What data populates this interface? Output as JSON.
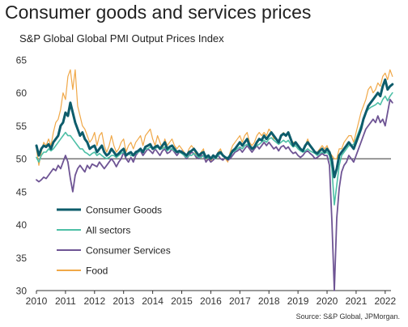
{
  "title": "Consumer goods and services prices",
  "subtitle": "S&P Global Global PMI Output Prices Index",
  "source": "Source: S&P Global, JPMorgan.",
  "chart_data": {
    "type": "line",
    "x_start": 2010.0,
    "x_step_months": 1,
    "xlim": [
      2010,
      2022.2
    ],
    "ylim": [
      30,
      65
    ],
    "yticks": [
      30,
      35,
      40,
      45,
      50,
      55,
      60,
      65
    ],
    "xticks": [
      "2010",
      "2011",
      "2012",
      "2013",
      "2014",
      "2015",
      "2016",
      "2017",
      "2018",
      "2019",
      "2020",
      "2021",
      "2022"
    ],
    "reference_line": 50,
    "grid": false,
    "legend_position": "lower-left",
    "series": [
      {
        "name": "Consumer Goods",
        "color": "#0d5c6b",
        "values": [
          52.0,
          50.5,
          51.5,
          52.0,
          51.8,
          52.2,
          51.5,
          52.5,
          53.0,
          53.5,
          55.0,
          55.5,
          57.0,
          56.5,
          58.5,
          57.0,
          55.5,
          54.5,
          53.5,
          54.0,
          53.0,
          52.5,
          51.5,
          51.8,
          52.0,
          51.0,
          51.5,
          52.0,
          51.0,
          50.5,
          50.8,
          51.5,
          51.0,
          50.5,
          50.8,
          51.2,
          51.5,
          50.5,
          50.8,
          51.0,
          50.5,
          51.0,
          51.2,
          51.5,
          51.0,
          51.8,
          52.0,
          52.2,
          51.5,
          51.8,
          52.0,
          51.5,
          52.0,
          52.5,
          51.5,
          51.8,
          52.0,
          51.5,
          51.0,
          51.2,
          51.0,
          50.8,
          50.5,
          51.0,
          51.2,
          51.5,
          51.0,
          50.5,
          50.8,
          51.0,
          50.2,
          50.5,
          50.0,
          50.5,
          50.2,
          50.8,
          51.0,
          50.5,
          50.2,
          50.0,
          50.5,
          51.2,
          51.5,
          52.0,
          52.5,
          52.0,
          52.5,
          53.0,
          52.0,
          51.5,
          51.8,
          52.5,
          53.0,
          52.8,
          53.5,
          53.0,
          53.5,
          54.0,
          53.5,
          53.0,
          52.5,
          53.5,
          53.8,
          53.5,
          54.0,
          53.0,
          52.0,
          52.5,
          52.0,
          51.5,
          51.2,
          52.0,
          52.5,
          52.0,
          51.5,
          51.0,
          50.8,
          51.2,
          51.5,
          51.0,
          51.5,
          51.0,
          49.8,
          47.2,
          48.5,
          50.5,
          51.0,
          51.5,
          52.0,
          52.5,
          52.0,
          51.5,
          52.5,
          53.5,
          54.5,
          56.0,
          57.0,
          58.0,
          58.5,
          59.0,
          59.5,
          60.0,
          59.5,
          61.0,
          62.0,
          60.5,
          61.0,
          61.3
        ]
      },
      {
        "name": "All sectors",
        "color": "#4dbfa6",
        "values": [
          50.2,
          49.5,
          50.5,
          51.0,
          51.0,
          51.5,
          51.2,
          51.5,
          52.0,
          52.5,
          53.0,
          53.5,
          54.0,
          53.5,
          53.5,
          53.0,
          52.5,
          52.0,
          51.5,
          51.5,
          51.0,
          50.8,
          50.5,
          50.8,
          51.0,
          50.5,
          50.8,
          50.5,
          50.2,
          50.0,
          50.2,
          50.5,
          50.5,
          50.2,
          50.5,
          50.8,
          51.0,
          50.5,
          50.8,
          50.5,
          50.5,
          50.8,
          51.0,
          51.2,
          51.0,
          51.5,
          51.5,
          51.8,
          51.5,
          51.5,
          51.8,
          51.5,
          51.5,
          51.8,
          51.2,
          51.5,
          51.5,
          51.2,
          51.0,
          51.0,
          50.8,
          50.5,
          50.2,
          50.5,
          50.5,
          50.8,
          50.5,
          50.2,
          50.2,
          50.5,
          50.0,
          50.2,
          50.0,
          50.2,
          50.0,
          50.5,
          50.8,
          50.5,
          50.2,
          50.2,
          50.5,
          51.0,
          51.2,
          51.5,
          51.8,
          51.5,
          52.0,
          52.2,
          51.8,
          51.5,
          51.8,
          52.0,
          52.2,
          52.5,
          52.8,
          52.5,
          53.0,
          53.2,
          52.8,
          52.5,
          52.2,
          52.5,
          52.8,
          52.5,
          52.8,
          52.2,
          51.8,
          52.0,
          51.5,
          51.2,
          51.0,
          51.2,
          51.5,
          51.2,
          51.0,
          50.8,
          50.5,
          50.8,
          51.0,
          50.8,
          51.0,
          50.5,
          48.5,
          43.0,
          46.0,
          49.0,
          50.5,
          51.0,
          51.5,
          52.0,
          52.0,
          52.2,
          53.0,
          54.0,
          55.0,
          56.0,
          57.0,
          57.5,
          57.8,
          58.0,
          58.2,
          58.5,
          58.2,
          59.0,
          59.5,
          58.8,
          59.5,
          60.0
        ]
      },
      {
        "name": "Consumer Services",
        "color": "#6e5494",
        "values": [
          46.8,
          46.5,
          46.8,
          47.2,
          47.0,
          47.5,
          48.0,
          48.5,
          48.2,
          49.0,
          48.5,
          49.5,
          50.5,
          49.5,
          47.0,
          45.0,
          47.5,
          48.5,
          49.0,
          48.5,
          48.0,
          49.0,
          48.5,
          49.2,
          49.0,
          48.8,
          49.5,
          49.0,
          48.5,
          49.0,
          49.5,
          50.0,
          49.5,
          48.8,
          49.5,
          50.0,
          51.0,
          50.0,
          49.5,
          50.2,
          49.5,
          50.5,
          51.0,
          51.2,
          50.5,
          51.0,
          51.5,
          51.2,
          50.8,
          51.5,
          51.0,
          50.5,
          51.2,
          51.5,
          50.8,
          51.0,
          51.5,
          51.0,
          50.5,
          51.0,
          51.2,
          50.5,
          50.0,
          50.5,
          51.0,
          50.8,
          50.2,
          50.0,
          50.5,
          50.5,
          49.5,
          50.0,
          49.5,
          49.8,
          50.2,
          50.5,
          50.0,
          49.8,
          50.2,
          49.8,
          50.0,
          50.5,
          51.0,
          51.2,
          51.5,
          51.0,
          51.5,
          52.0,
          51.5,
          51.0,
          51.5,
          52.0,
          51.5,
          52.0,
          52.5,
          52.0,
          52.5,
          52.0,
          51.5,
          51.8,
          51.2,
          51.8,
          52.0,
          51.5,
          51.8,
          51.2,
          50.8,
          51.0,
          50.5,
          50.2,
          50.5,
          51.0,
          51.2,
          50.8,
          50.5,
          50.0,
          50.2,
          50.5,
          50.8,
          50.5,
          50.5,
          49.0,
          40.5,
          30.0,
          41.0,
          45.5,
          48.0,
          49.0,
          49.5,
          50.5,
          50.0,
          49.5,
          50.5,
          51.5,
          52.5,
          53.5,
          54.5,
          55.0,
          55.5,
          56.0,
          55.5,
          56.5,
          55.5,
          56.0,
          55.0,
          57.0,
          59.0,
          58.5
        ]
      },
      {
        "name": "Food",
        "color": "#f0a848",
        "values": [
          51.5,
          49.0,
          51.0,
          52.5,
          52.0,
          53.0,
          52.0,
          54.0,
          55.5,
          56.0,
          57.5,
          60.0,
          59.0,
          62.5,
          63.5,
          60.5,
          63.5,
          58.0,
          56.5,
          55.0,
          54.5,
          53.5,
          52.5,
          53.0,
          54.0,
          52.0,
          53.5,
          54.0,
          52.0,
          51.0,
          52.0,
          53.5,
          52.0,
          51.0,
          51.5,
          52.5,
          53.0,
          51.0,
          52.0,
          52.5,
          51.5,
          52.5,
          53.0,
          53.5,
          52.0,
          53.5,
          54.0,
          54.5,
          53.0,
          52.0,
          53.5,
          52.5,
          51.5,
          53.0,
          52.0,
          52.5,
          53.0,
          52.0,
          51.5,
          52.0,
          51.5,
          51.0,
          50.5,
          51.5,
          52.0,
          51.5,
          50.5,
          50.0,
          51.0,
          51.5,
          49.5,
          50.5,
          49.5,
          50.5,
          50.0,
          51.0,
          51.5,
          50.5,
          50.0,
          49.5,
          51.0,
          52.0,
          52.5,
          53.0,
          53.5,
          52.5,
          53.5,
          54.0,
          52.5,
          52.0,
          52.5,
          53.5,
          54.0,
          53.5,
          54.0,
          53.5,
          54.5,
          54.0,
          53.0,
          53.0,
          52.5,
          53.5,
          54.0,
          53.5,
          54.0,
          53.0,
          52.5,
          52.5,
          52.0,
          51.5,
          51.0,
          52.0,
          53.0,
          52.0,
          51.5,
          51.0,
          51.0,
          51.5,
          52.0,
          51.5,
          52.0,
          51.0,
          50.5,
          50.0,
          50.0,
          51.5,
          51.5,
          52.5,
          53.0,
          53.5,
          53.5,
          52.5,
          54.0,
          55.5,
          57.0,
          58.0,
          59.0,
          60.5,
          61.0,
          60.0,
          60.5,
          61.5,
          61.0,
          62.5,
          63.0,
          62.0,
          63.5,
          62.5
        ]
      }
    ]
  }
}
